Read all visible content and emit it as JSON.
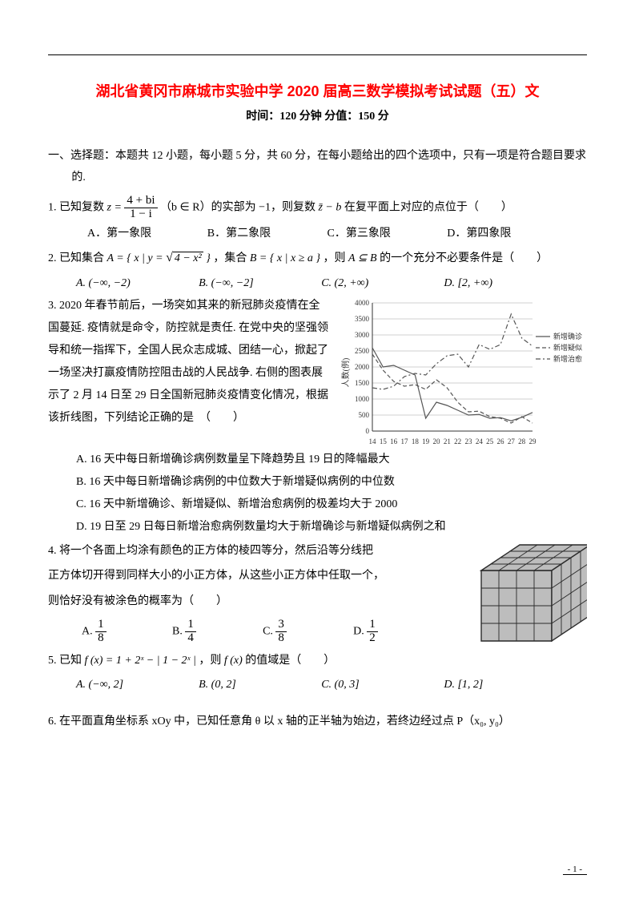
{
  "page": {
    "title": "湖北省黄冈市麻城市实验中学 2020 届高三数学模拟考试试题（五）文",
    "subtitle": "时间：120 分钟  分值：150 分",
    "page_number": "- 1 -",
    "title_color": "#ff0000",
    "text_color": "#000000",
    "background": "#ffffff"
  },
  "section1": {
    "heading": "一、选择题：本题共 12 小题，每小题 5 分，共 60 分，在每小题给出的四个选项中，只有一项是符合题目要求的."
  },
  "q1": {
    "stem_pre": "1. 已知复数 ",
    "frac_num": "4 + bi",
    "frac_den": "1 − i",
    "stem_mid": "（b ∈ R）的实部为 −1，则复数 ",
    "zbar": "z̄ − b",
    "stem_post": " 在复平面上对应的点位于（　　）",
    "A": "A．第一象限",
    "B": "B．第二象限",
    "C": "C．第三象限",
    "D": "D．第四象限"
  },
  "q2": {
    "stem_pre": "2. 已知集合 ",
    "setA_pre": "A = { x | y = ",
    "setA_rad": "4 − x²",
    "setA_post": " }",
    "stem_mid1": "，集合 ",
    "setB": "B = { x | x ≥ a }",
    "stem_mid2": "，则 ",
    "cond": "A ⊆ B",
    "stem_post": " 的一个充分不必要条件是（　　）",
    "A": "A. (−∞, −2)",
    "B": "B. (−∞, −2]",
    "C": "C. (2, +∞)",
    "D": "D. [2, +∞)"
  },
  "q3": {
    "text": "3. 2020 年春节前后，一场突如其来的新冠肺炎疫情在全国蔓延. 疫情就是命令，防控就是责任. 在党中央的坚强领导和统一指挥下，全国人民众志成城、团结一心，掀起了一场坚决打赢疫情防控阻击战的人民战争. 右侧的图表展示了 2 月 14 日至 29 日全国新冠肺炎疫情变化情况，根据该折线图，下列结论正确的是　（　　）",
    "A": "A. 16 天中每日新增确诊病例数量呈下降趋势且 19 日的降幅最大",
    "B": "B. 16 天中每日新增确诊病例的中位数大于新增疑似病例的中位数",
    "C": "C. 16 天中新增确诊、新增疑似、新增治愈病例的极差均大于 2000",
    "D": "D. 19 日至 29 日每日新增治愈病例数量均大于新增确诊与新增疑似病例之和",
    "chart": {
      "type": "line",
      "ylabel": "人数(例)",
      "ylim": [
        0,
        4000
      ],
      "ytick_step": 500,
      "yticks": [
        0,
        500,
        1000,
        1500,
        2000,
        2500,
        3000,
        3500,
        4000
      ],
      "x_categories": [
        "14",
        "15",
        "16",
        "17",
        "18",
        "19",
        "20",
        "21",
        "22",
        "23",
        "24",
        "25",
        "26",
        "27",
        "28",
        "29"
      ],
      "series": [
        {
          "name": "新增确诊",
          "style": "solid",
          "color": "#555555",
          "values": [
            2600,
            2000,
            2050,
            1900,
            1750,
            400,
            900,
            800,
            650,
            500,
            520,
            400,
            420,
            320,
            430,
            580
          ]
        },
        {
          "name": "新增疑似",
          "style": "dashed",
          "color": "#555555",
          "values": [
            2400,
            1900,
            1550,
            1400,
            1450,
            1300,
            1600,
            1350,
            900,
            600,
            620,
            450,
            400,
            250,
            450,
            250
          ]
        },
        {
          "name": "新增治愈",
          "style": "dashdot",
          "color": "#555555",
          "values": [
            1350,
            1300,
            1400,
            1700,
            1800,
            1750,
            2100,
            2350,
            2400,
            2000,
            2700,
            2550,
            2700,
            3650,
            2900,
            2650
          ]
        }
      ],
      "legend": [
        "新增确诊",
        "新增疑似",
        "新增治愈"
      ],
      "grid_color": "#888888",
      "line_width": 1.2,
      "background": "#ffffff",
      "font_size": 9
    }
  },
  "q4": {
    "l1": "4. 将一个各面上均涂有颜色的正方体的棱四等分，然后沿等分线把",
    "l2": "正方体切开得到同样大小的小正方体，从这些小正方体中任取一个，",
    "l3": "则恰好没有被涂色的概率为（　　）",
    "A_num": "1",
    "A_den": "8",
    "B_num": "1",
    "B_den": "4",
    "C_num": "3",
    "C_den": "8",
    "D_num": "1",
    "D_den": "2",
    "cube": {
      "type": "infographic",
      "grid": 4,
      "face_color": "#bdbdbd",
      "line_color": "#2a2a2a",
      "highlight_color": "#ffffff"
    }
  },
  "q5": {
    "stem_pre": "5. 已知 ",
    "fx": "f (x) = 1 + 2ˣ − | 1 − 2ˣ |",
    "stem_mid": "，则 ",
    "fx2": "f (x)",
    "stem_post": " 的值域是（　　）",
    "A": "A. (−∞, 2]",
    "B": "B. (0, 2]",
    "C": "C. (0, 3]",
    "D": "D. [1, 2]"
  },
  "q6": {
    "text": "6. 在平面直角坐标系 xOy 中，已知任意角 θ 以 x 轴的正半轴为始边，若终边经过点 P（x₀, y₀）"
  }
}
